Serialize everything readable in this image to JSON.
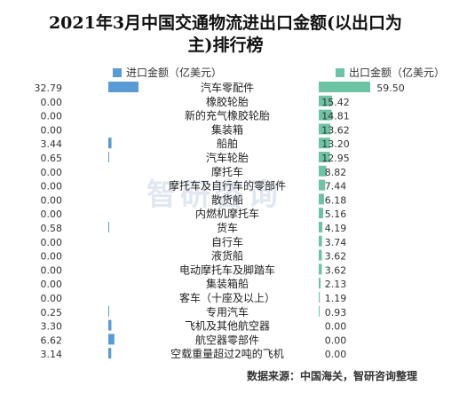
{
  "title_line1": "2021年3月中国交通物流进出口金额(以出口为",
  "title_line2": "主)排行榜",
  "legend": {
    "import_label": "进口金额（亿美元）",
    "export_label": "出口金额（亿美元）"
  },
  "source": "数据来源：中国海关，智研咨询整理",
  "watermark": "智研咨询",
  "colors": {
    "import": "#5b9bd5",
    "export": "#6cc4a4"
  },
  "chart_data": {
    "type": "bar",
    "title": "2021年3月中国交通物流进出口金额(以出口为主)排行榜",
    "categories": [
      "汽车零配件",
      "橡胶轮胎",
      "新的充气橡胶轮胎",
      "集装箱",
      "船舶",
      "汽车轮胎",
      "摩托车",
      "摩托车及自行车的零部件",
      "散货船",
      "内燃机摩托车",
      "货车",
      "自行车",
      "液货船",
      "电动摩托车及脚踏车",
      "集装箱船",
      "客车（十座及以上）",
      "专用汽车",
      "飞机及其他航空器",
      "航空器零部件",
      "空载重量超过2吨的飞机"
    ],
    "series": [
      {
        "name": "进口金额（亿美元）",
        "values": [
          32.79,
          0.0,
          0.0,
          0.0,
          3.44,
          0.65,
          0.0,
          0.0,
          0.0,
          0.0,
          0.58,
          0.0,
          0.0,
          0.0,
          0.0,
          0.0,
          0.25,
          3.3,
          6.62,
          3.14
        ]
      },
      {
        "name": "出口金额（亿美元）",
        "values": [
          59.5,
          15.42,
          14.81,
          13.62,
          13.2,
          12.95,
          8.82,
          7.44,
          6.18,
          5.16,
          4.19,
          3.74,
          3.62,
          3.62,
          2.13,
          1.19,
          0.93,
          0.0,
          0.0,
          0.0
        ]
      }
    ],
    "value_labels_import": [
      "32.79",
      "0.00",
      "0.00",
      "0.00",
      "3.44",
      "0.65",
      "0.00",
      "0.00",
      "0.00",
      "0.00",
      "0.58",
      "0.00",
      "0.00",
      "0.00",
      "0.00",
      "0.00",
      "0.25",
      "3.30",
      "6.62",
      "3.14"
    ],
    "value_labels_export": [
      "59.50",
      "15.42",
      "14.81",
      "13.62",
      "13.20",
      "12.95",
      "8.82",
      "7.44",
      "6.18",
      "5.16",
      "4.19",
      "3.74",
      "3.62",
      "3.62",
      "2.13",
      "1.19",
      "0.93",
      "0.00",
      "0.00",
      "0.00"
    ],
    "legend_position": "top",
    "grid": false
  }
}
